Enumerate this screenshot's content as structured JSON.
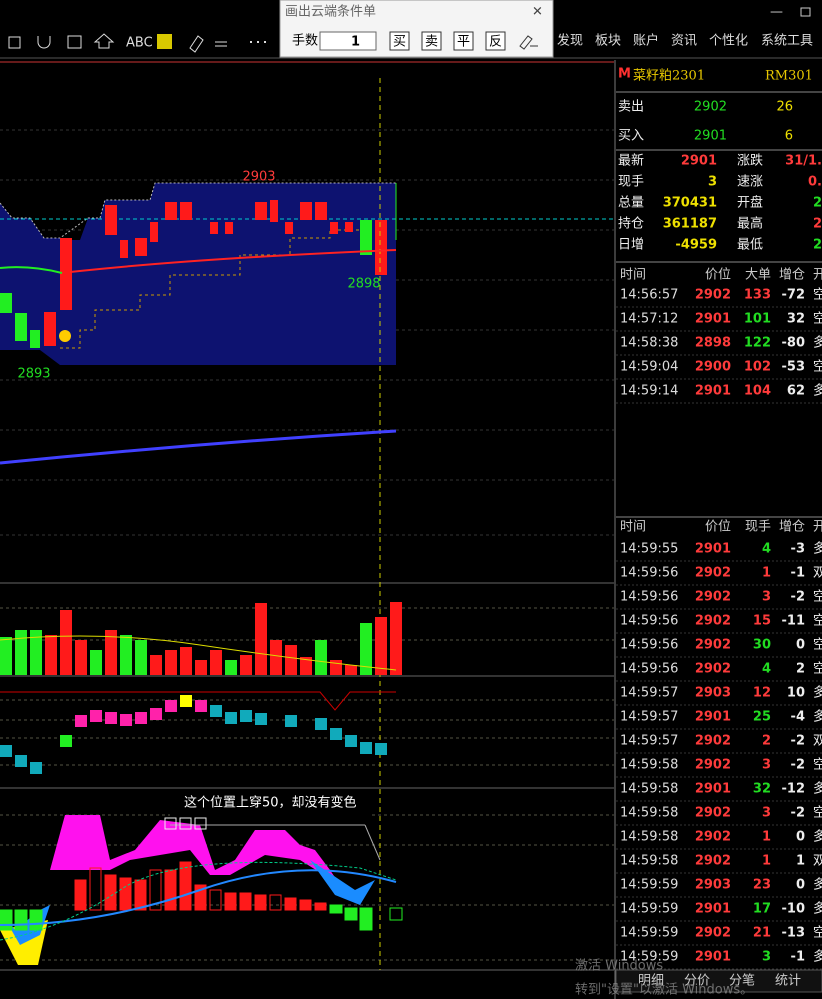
{
  "toolbar": {
    "tools": [
      "ABC"
    ],
    "menu": [
      "发现",
      "板块",
      "账户",
      "资讯",
      "个性化",
      "系统工具"
    ]
  },
  "dialog": {
    "title": "画出云端条件单",
    "qty_label": "手数",
    "qty": "1",
    "buttons": [
      "买",
      "卖",
      "平",
      "反"
    ]
  },
  "chart": {
    "labels": [
      "2903",
      "2898",
      "2893"
    ],
    "annotation": "这个位置上穿50，却没有变色"
  },
  "quote": {
    "badge": "M",
    "name": "菜籽粕2301",
    "code": "RM301",
    "sell": {
      "label": "卖出",
      "price": "2902",
      "qty": "26"
    },
    "buy": {
      "label": "买入",
      "price": "2901",
      "qty": "6"
    },
    "stats": [
      [
        "最新",
        "2901",
        "涨跌",
        "31/1."
      ],
      [
        "现手",
        "3",
        "速涨",
        "0."
      ],
      [
        "总量",
        "370431",
        "开盘",
        "2"
      ],
      [
        "持仓",
        "361187",
        "最高",
        "2"
      ],
      [
        "日增",
        "-4959",
        "最低",
        "2"
      ]
    ]
  },
  "big_trades": {
    "header": [
      "时间",
      "价位",
      "大单",
      "增仓",
      "开"
    ],
    "rows": [
      {
        "cells": [
          "14:56:57",
          "2902",
          "133",
          "-72",
          "空"
        ],
        "qty_color": "#ff3b3b"
      },
      {
        "cells": [
          "14:57:12",
          "2901",
          "101",
          "32",
          "空"
        ],
        "qty_color": "#22dd22"
      },
      {
        "cells": [
          "14:58:38",
          "2898",
          "122",
          "-80",
          "多"
        ],
        "qty_color": "#22dd22"
      },
      {
        "cells": [
          "14:59:04",
          "2900",
          "102",
          "-53",
          "空"
        ],
        "qty_color": "#ff3b3b"
      },
      {
        "cells": [
          "14:59:14",
          "2901",
          "104",
          "62",
          "多"
        ],
        "qty_color": "#ff3b3b"
      }
    ]
  },
  "ticks": {
    "header": [
      "时间",
      "价位",
      "现手",
      "增仓",
      "开"
    ],
    "rows": [
      {
        "cells": [
          "14:59:55",
          "2901",
          "4",
          "-3",
          "多"
        ],
        "qty_color": "#22dd22"
      },
      {
        "cells": [
          "14:59:56",
          "2902",
          "1",
          "-1",
          "双"
        ],
        "qty_color": "#ff3b3b"
      },
      {
        "cells": [
          "14:59:56",
          "2902",
          "3",
          "-2",
          "空"
        ],
        "qty_color": "#ff3b3b"
      },
      {
        "cells": [
          "14:59:56",
          "2902",
          "15",
          "-11",
          "空"
        ],
        "qty_color": "#ff3b3b"
      },
      {
        "cells": [
          "14:59:56",
          "2902",
          "30",
          "0",
          "空"
        ],
        "qty_color": "#22dd22"
      },
      {
        "cells": [
          "14:59:56",
          "2902",
          "4",
          "2",
          "空"
        ],
        "qty_color": "#22dd22"
      },
      {
        "cells": [
          "14:59:57",
          "2903",
          "12",
          "10",
          "多"
        ],
        "qty_color": "#ff3b3b"
      },
      {
        "cells": [
          "14:59:57",
          "2901",
          "25",
          "-4",
          "多"
        ],
        "qty_color": "#22dd22"
      },
      {
        "cells": [
          "14:59:57",
          "2902",
          "2",
          "-2",
          "双"
        ],
        "qty_color": "#ff3b3b"
      },
      {
        "cells": [
          "14:59:58",
          "2902",
          "3",
          "-2",
          "空"
        ],
        "qty_color": "#ff3b3b"
      },
      {
        "cells": [
          "14:59:58",
          "2901",
          "32",
          "-12",
          "多"
        ],
        "qty_color": "#22dd22"
      },
      {
        "cells": [
          "14:59:58",
          "2902",
          "3",
          "-2",
          "空"
        ],
        "qty_color": "#ff3b3b"
      },
      {
        "cells": [
          "14:59:58",
          "2902",
          "1",
          "0",
          "多"
        ],
        "qty_color": "#ff3b3b"
      },
      {
        "cells": [
          "14:59:58",
          "2902",
          "1",
          "1",
          "双"
        ],
        "qty_color": "#ff3b3b"
      },
      {
        "cells": [
          "14:59:59",
          "2903",
          "23",
          "0",
          "多"
        ],
        "qty_color": "#ff3b3b"
      },
      {
        "cells": [
          "14:59:59",
          "2901",
          "17",
          "-10",
          "多"
        ],
        "qty_color": "#22dd22"
      },
      {
        "cells": [
          "14:59:59",
          "2902",
          "21",
          "-13",
          "空"
        ],
        "qty_color": "#ff3b3b"
      },
      {
        "cells": [
          "14:59:59",
          "2901",
          "3",
          "-1",
          "多"
        ],
        "qty_color": "#22dd22"
      }
    ]
  },
  "tabs": [
    "明细",
    "分价",
    "分笔",
    "统计"
  ],
  "watermark": {
    "line1": "激活 Windows",
    "line2": "转到\"设置\"以激活 Windows。"
  }
}
